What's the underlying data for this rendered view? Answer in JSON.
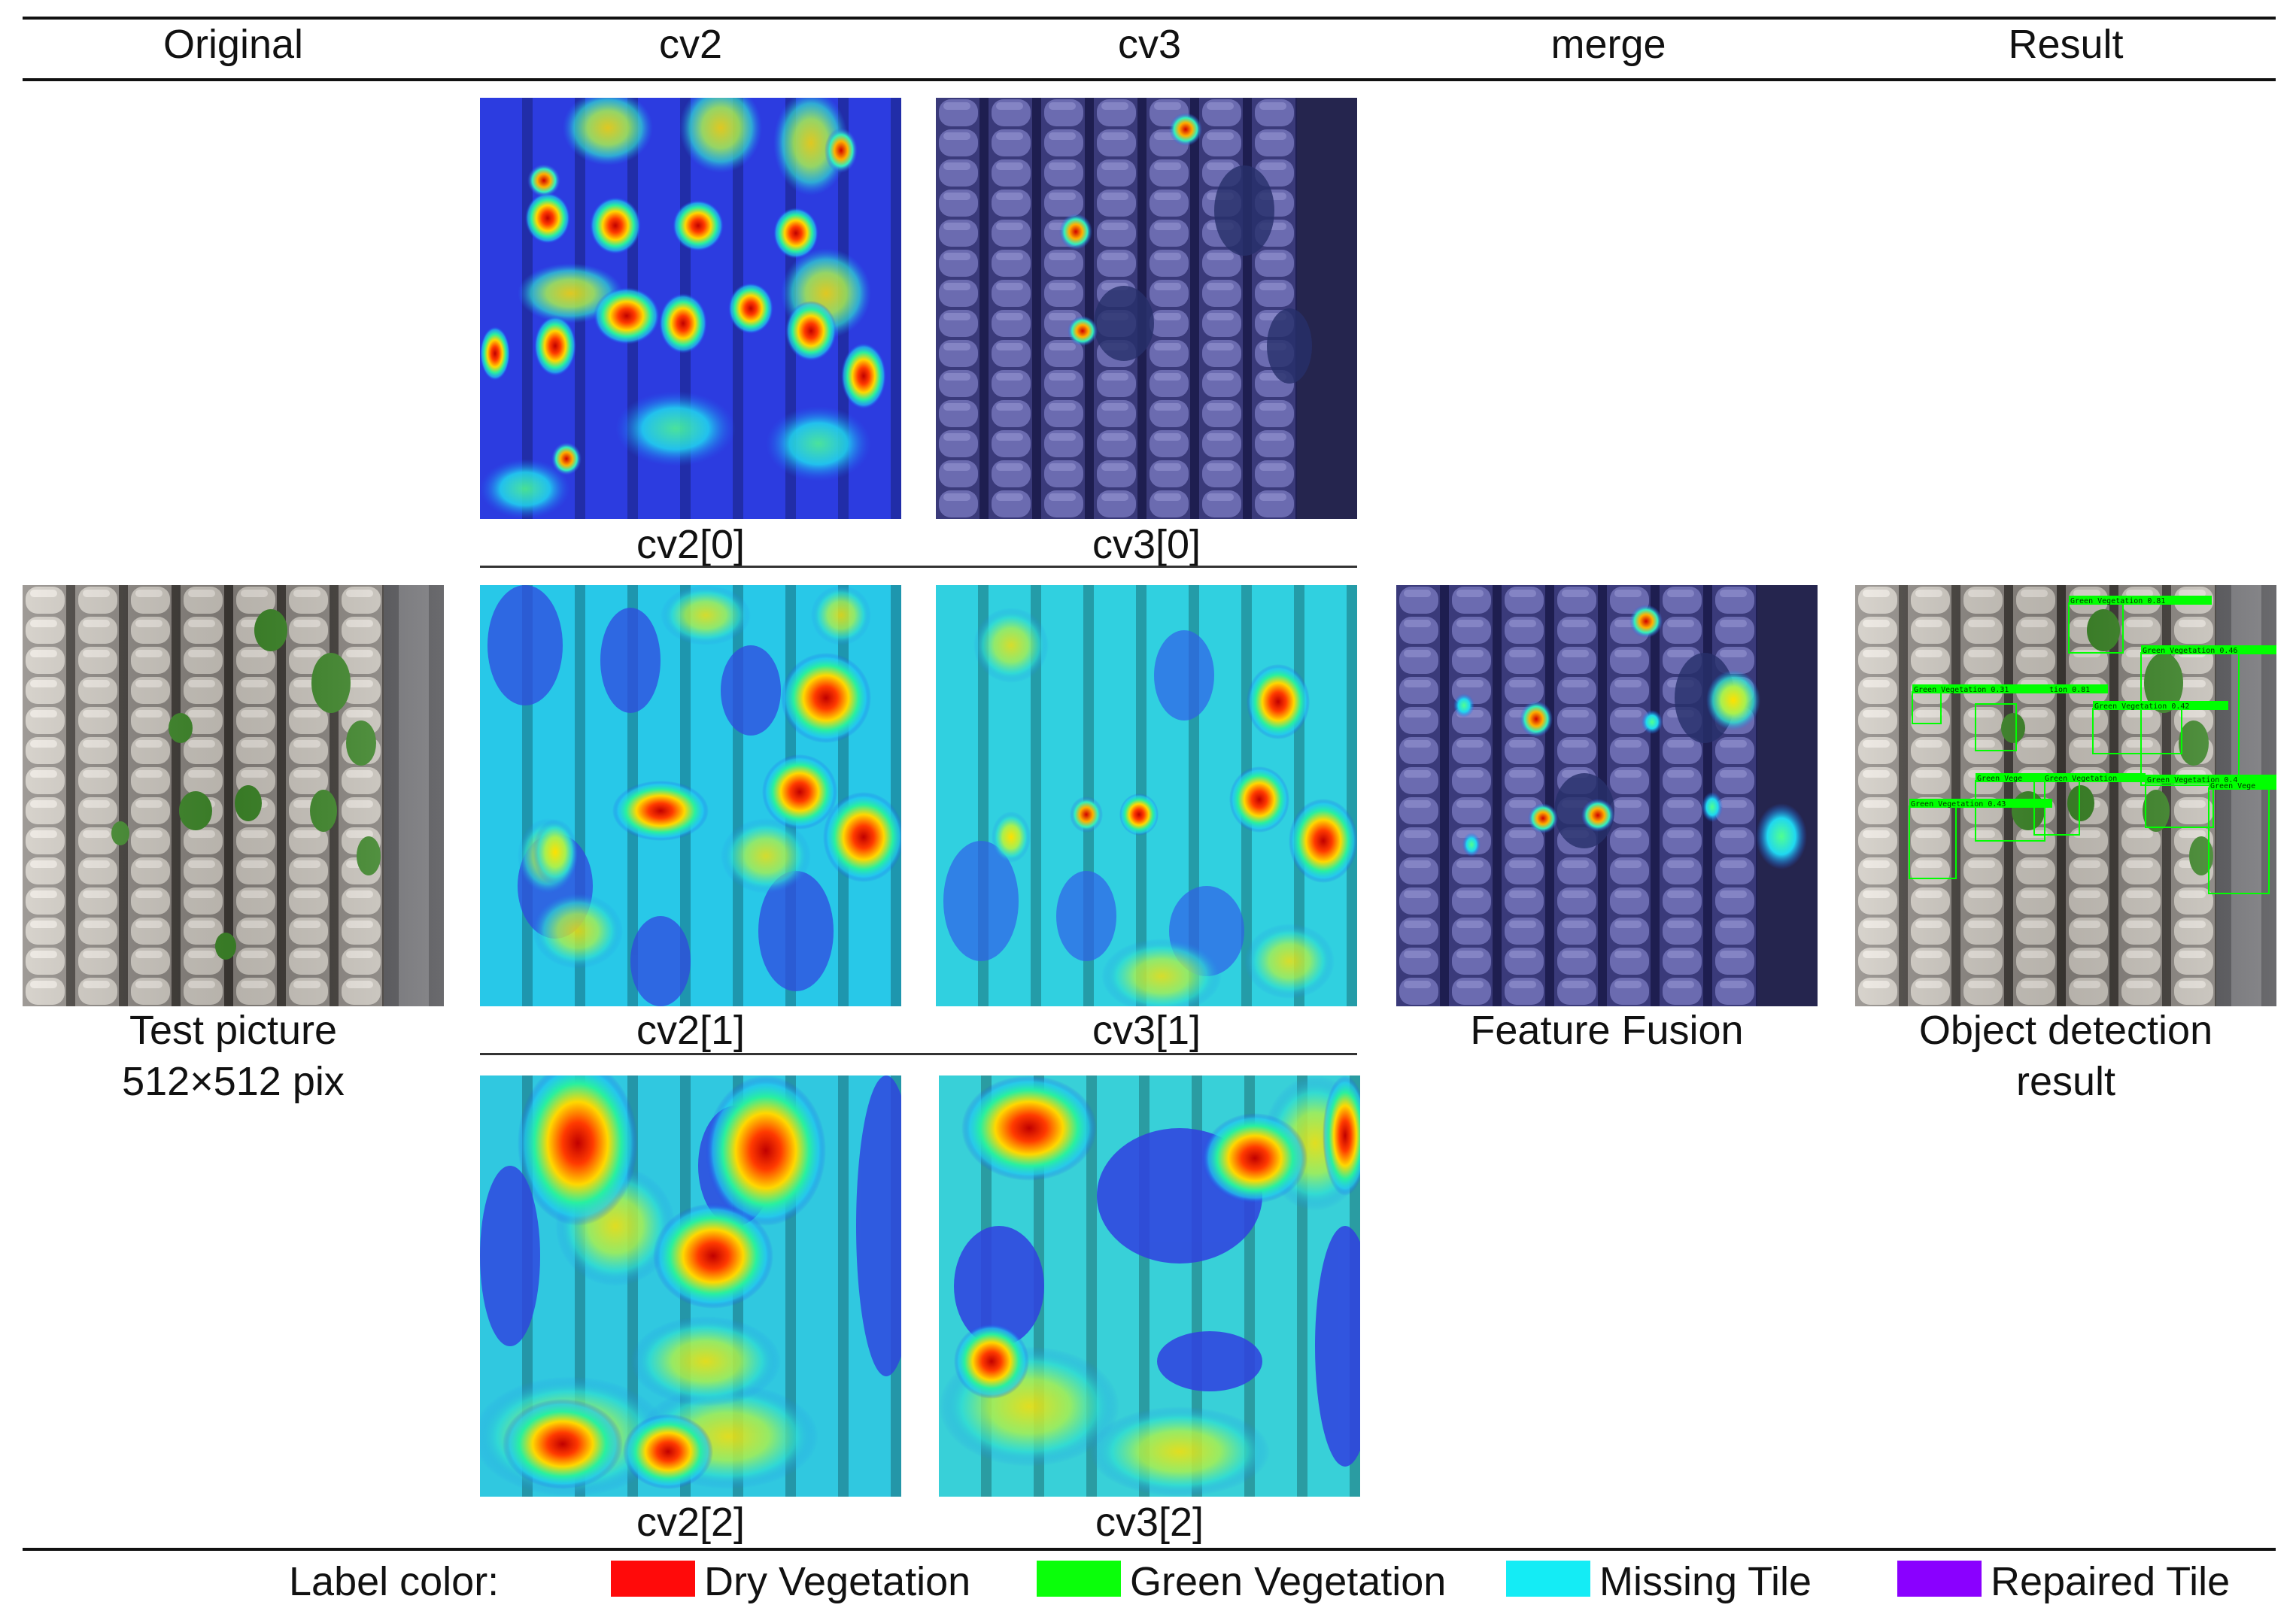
{
  "columns": {
    "original": "Original",
    "cv2": "cv2",
    "cv3": "cv3",
    "merge": "merge",
    "result": "Result"
  },
  "panels": {
    "cv2_0": "cv2[0]",
    "cv3_0": "cv3[0]",
    "cv2_1": "cv2[1]",
    "cv3_1": "cv3[1]",
    "cv2_2": "cv2[2]",
    "cv3_2": "cv3[2]"
  },
  "captions": {
    "original_line1": "Test picture",
    "original_line2": "512×512 pix",
    "merge": "Feature Fusion",
    "result_line1": "Object detection",
    "result_line2": "result"
  },
  "detections": [
    {
      "label": "Green Vegetation 0.81"
    },
    {
      "label": "Green Vegetation 0.46"
    },
    {
      "label": "Green Vegetation 0.31"
    },
    {
      "label": "tion 0.81"
    },
    {
      "label": "Green Vegetation 0.42"
    },
    {
      "label": "Green Vege"
    },
    {
      "label": "Green Vegetation"
    },
    {
      "label": "Green Vegetation 0.4"
    },
    {
      "label": "Green Vegetation 0.43"
    },
    {
      "label": "Green Vege"
    }
  ],
  "legend": {
    "title": "Label color:",
    "items": [
      {
        "label": "Dry Vegetation",
        "color": "#ff0a0a"
      },
      {
        "label": "Green Vegetation",
        "color": "#0aff0a"
      },
      {
        "label": "Missing Tile",
        "color": "#14ecf5"
      },
      {
        "label": "Repaired Tile",
        "color": "#8a00ff"
      }
    ]
  }
}
